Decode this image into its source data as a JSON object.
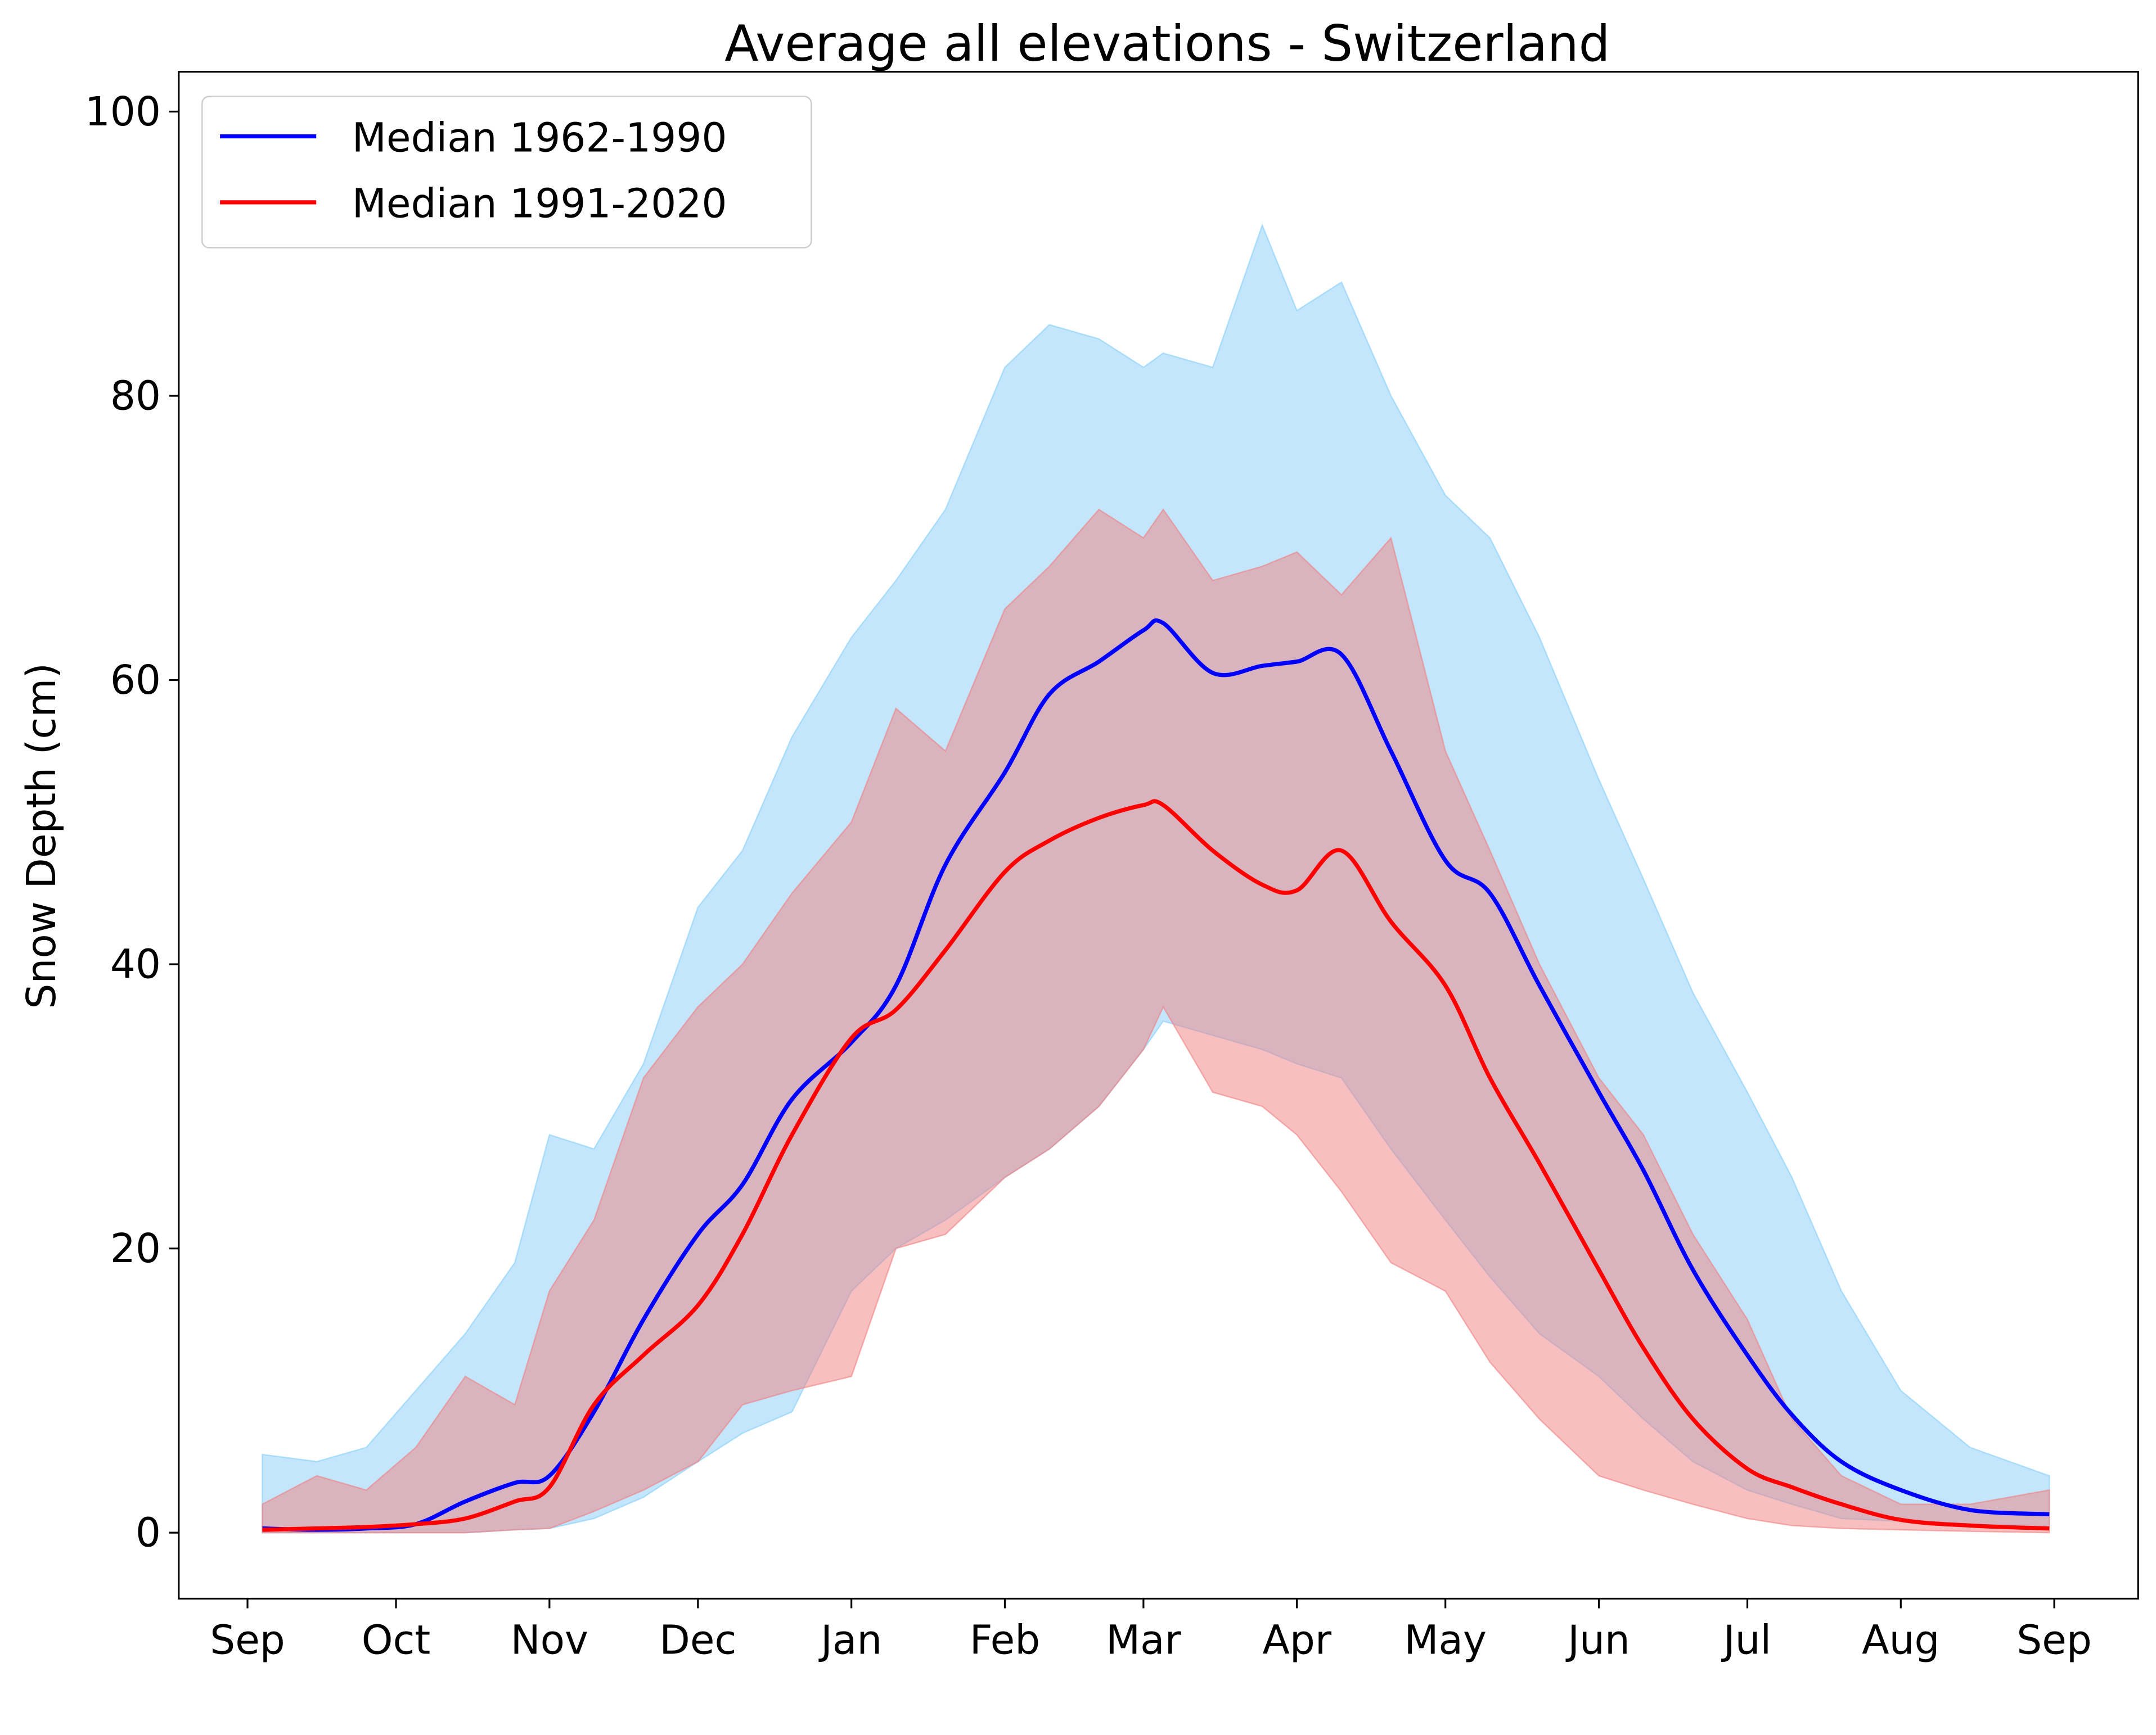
{
  "chart_data": {
    "type": "line",
    "title": "Average all elevations - Switzerland",
    "xlabel": "",
    "ylabel": "Snow Depth (cm)",
    "ylim": [
      -4.6,
      102.8
    ],
    "yticks": [
      0,
      20,
      40,
      60,
      80,
      100
    ],
    "xticks": [
      {
        "label": "Sep",
        "date": "09-01"
      },
      {
        "label": "Oct",
        "date": "10-01"
      },
      {
        "label": "Nov",
        "date": "11-01"
      },
      {
        "label": "Dec",
        "date": "12-01"
      },
      {
        "label": "Jan",
        "date": "01-01"
      },
      {
        "label": "Feb",
        "date": "02-01"
      },
      {
        "label": "Mar",
        "date": "03-01"
      },
      {
        "label": "Apr",
        "date": "04-01"
      },
      {
        "label": "May",
        "date": "05-01"
      },
      {
        "label": "Jun",
        "date": "06-01"
      },
      {
        "label": "Jul",
        "date": "07-01"
      },
      {
        "label": "Aug",
        "date": "08-01"
      },
      {
        "label": "Sep",
        "date": "09-01+"
      }
    ],
    "grid": false,
    "legend_position": "top-left",
    "x": [
      "09-04",
      "09-15",
      "09-25",
      "10-05",
      "10-15",
      "10-25",
      "11-01",
      "11-10",
      "11-20",
      "12-01",
      "12-10",
      "12-20",
      "01-01",
      "01-10",
      "01-20",
      "02-01",
      "02-10",
      "02-20",
      "03-01",
      "03-05",
      "03-15",
      "03-25",
      "04-01",
      "04-10",
      "04-20",
      "05-01",
      "05-10",
      "05-20",
      "06-01",
      "06-10",
      "06-20",
      "07-01",
      "07-10",
      "07-20",
      "08-01",
      "08-15",
      "08-31"
    ],
    "series": [
      {
        "name": "Median 1962-1990",
        "color": "#0000ff",
        "values": [
          0.3,
          0.2,
          0.3,
          0.6,
          2.2,
          3.5,
          4,
          8.5,
          15,
          21,
          24.5,
          30.5,
          34.5,
          38.5,
          47,
          53.5,
          59,
          61.3,
          63.5,
          64,
          60.5,
          61,
          61.3,
          61.8,
          55,
          47.3,
          45,
          38.5,
          31,
          25.5,
          18.5,
          12.5,
          8.3,
          5,
          3,
          1.6,
          1.3
        ],
        "band_color": "#87cefa",
        "band_upper": [
          5.5,
          5,
          6,
          10,
          14,
          19,
          28,
          27,
          33,
          44,
          48,
          56,
          63,
          67,
          72,
          82,
          85,
          84,
          82,
          83,
          82,
          92,
          86,
          88,
          80,
          73,
          70,
          63,
          53,
          46,
          38,
          31,
          25,
          17,
          10,
          6,
          4
        ],
        "band_lower": [
          0,
          0,
          0,
          0,
          0,
          0.2,
          0.3,
          1,
          2.5,
          5,
          7,
          8.5,
          17,
          20,
          22,
          25,
          27,
          30,
          34,
          36,
          35,
          34,
          33,
          32,
          27,
          22,
          18,
          14,
          11,
          8,
          5,
          3,
          2,
          1,
          0.8,
          0.6,
          0.5
        ]
      },
      {
        "name": "Median 1991-2020",
        "color": "#ff0000",
        "values": [
          0.2,
          0.3,
          0.4,
          0.6,
          1.0,
          2.2,
          3.2,
          9,
          12.5,
          16,
          21,
          28,
          34.8,
          36.8,
          41,
          46.5,
          48.7,
          50.3,
          51.2,
          51.2,
          48,
          45.6,
          45.2,
          48,
          43,
          38.5,
          32,
          26,
          18.5,
          13,
          8,
          4.5,
          3.2,
          2,
          0.9,
          0.5,
          0.3
        ],
        "band_color": "#f08080",
        "band_upper": [
          2,
          4,
          3,
          6,
          11,
          9,
          17,
          22,
          32,
          37,
          40,
          45,
          50,
          58,
          55,
          65,
          68,
          72,
          70,
          72,
          67,
          68,
          69,
          66,
          70,
          55,
          48,
          40,
          32,
          28,
          21,
          15,
          8,
          4,
          2,
          2,
          3
        ],
        "band_lower": [
          0,
          0,
          0,
          0,
          0,
          0.2,
          0.3,
          1.5,
          3,
          5,
          9,
          10,
          11,
          20,
          21,
          25,
          27,
          30,
          34,
          37,
          31,
          30,
          28,
          24,
          19,
          17,
          12,
          8,
          4,
          3,
          2,
          1,
          0.5,
          0.3,
          0.2,
          0.1,
          0
        ]
      }
    ]
  }
}
